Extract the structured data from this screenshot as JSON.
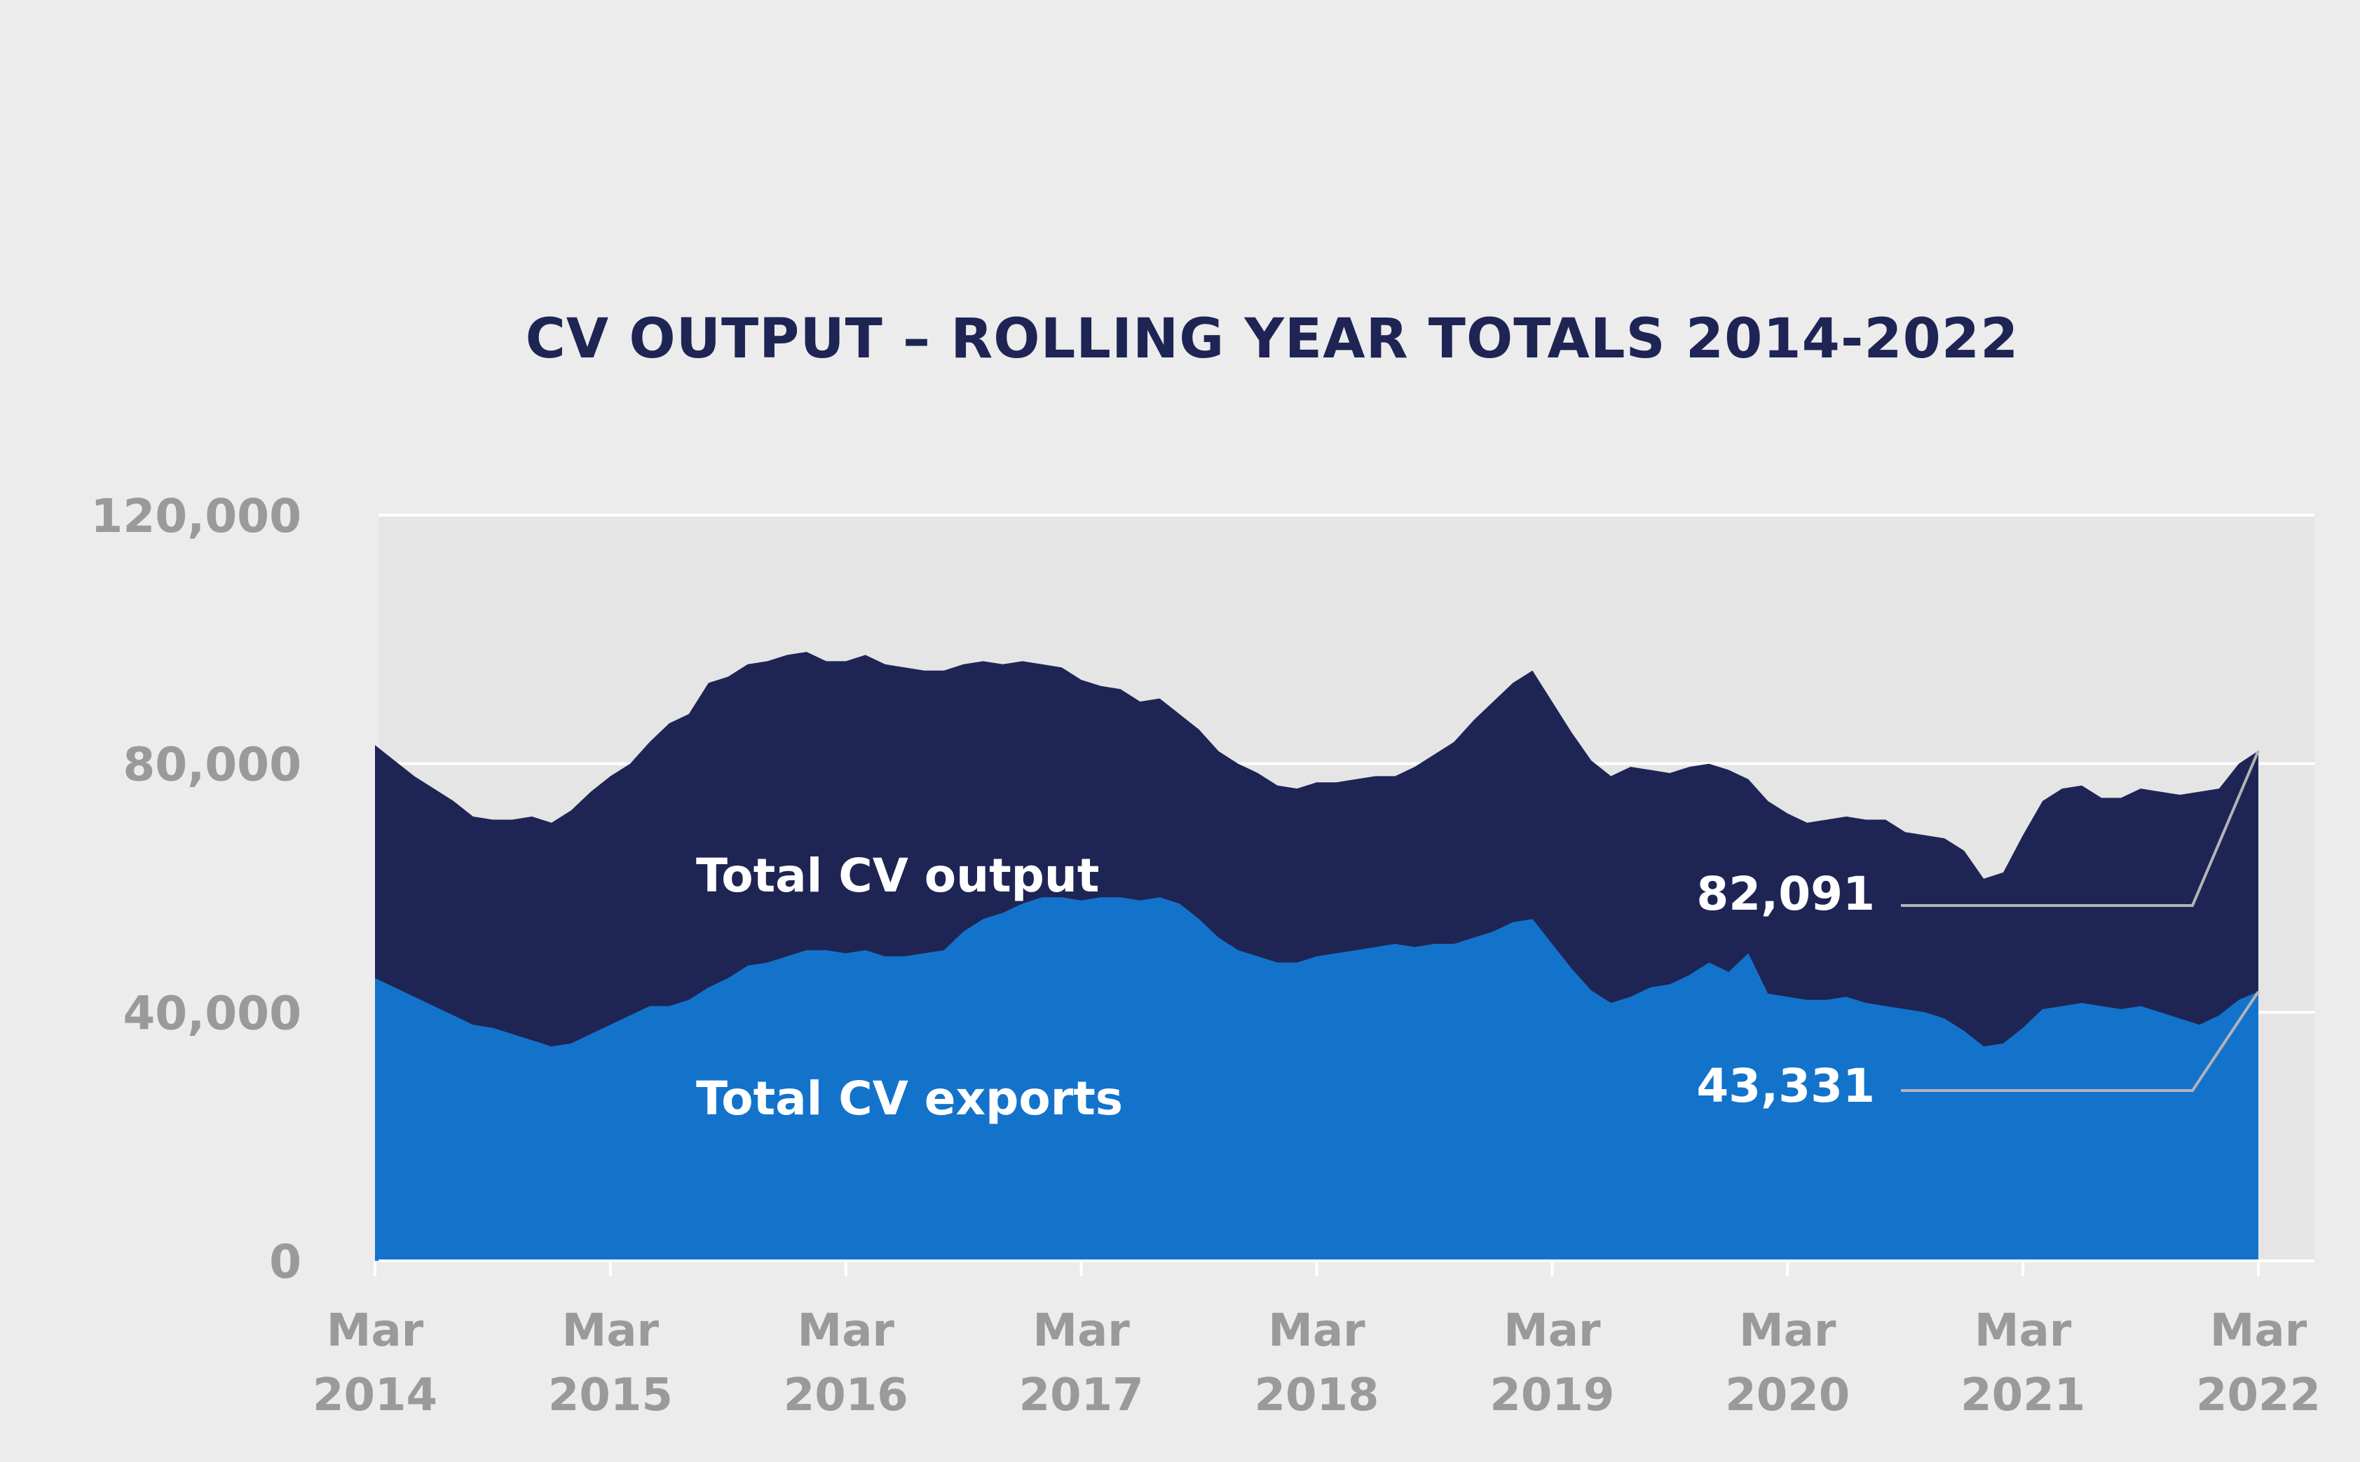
{
  "chart_data": {
    "type": "area",
    "title": "CV OUTPUT – ROLLING YEAR TOTALS 2014-2022",
    "xlabel": "",
    "ylabel": "",
    "ylim": [
      0,
      120000
    ],
    "yticks": [
      {
        "value": 0,
        "label": "0"
      },
      {
        "value": 40000,
        "label": "40,000"
      },
      {
        "value": 80000,
        "label": "80,000"
      },
      {
        "value": 120000,
        "label": "120,000"
      }
    ],
    "xticks": [
      {
        "index": 0,
        "month": "Mar",
        "year": "2014"
      },
      {
        "index": 12,
        "month": "Mar",
        "year": "2015"
      },
      {
        "index": 24,
        "month": "Mar",
        "year": "2016"
      },
      {
        "index": 36,
        "month": "Mar",
        "year": "2017"
      },
      {
        "index": 48,
        "month": "Mar",
        "year": "2018"
      },
      {
        "index": 60,
        "month": "Mar",
        "year": "2019"
      },
      {
        "index": 72,
        "month": "Mar",
        "year": "2020"
      },
      {
        "index": 84,
        "month": "Mar",
        "year": "2021"
      },
      {
        "index": 96,
        "month": "Mar",
        "year": "2022"
      }
    ],
    "grid": true,
    "series": [
      {
        "name": "Total CV output",
        "color": "#1e2554",
        "values": [
          83000,
          80500,
          78000,
          76000,
          74000,
          71500,
          71000,
          71000,
          71500,
          70500,
          72500,
          75500,
          78000,
          80000,
          83500,
          86500,
          88000,
          93000,
          94000,
          96000,
          96500,
          97500,
          98000,
          96500,
          96500,
          97500,
          96000,
          95500,
          95000,
          95000,
          96000,
          96500,
          96000,
          96500,
          96000,
          95500,
          93500,
          92500,
          92000,
          90000,
          90500,
          88000,
          85500,
          82000,
          80000,
          78500,
          76500,
          76000,
          77000,
          77000,
          77500,
          78000,
          78000,
          79500,
          81500,
          83500,
          87000,
          90000,
          93000,
          95000,
          90000,
          85000,
          80500,
          78000,
          79500,
          79000,
          78500,
          79500,
          80000,
          79000,
          77500,
          74000,
          72000,
          70500,
          71000,
          71500,
          71000,
          71000,
          69000,
          68500,
          68000,
          66000,
          61500,
          62500,
          68500,
          74000,
          76000,
          76500,
          74500,
          74500,
          76000,
          75500,
          75000,
          75500,
          76000,
          80000,
          82091
        ]
      },
      {
        "name": "Total CV exports",
        "color": "#1373cb",
        "values": [
          45500,
          44000,
          42500,
          41000,
          39500,
          38000,
          37500,
          36500,
          35500,
          34500,
          35000,
          36500,
          38000,
          39500,
          41000,
          41000,
          42000,
          44000,
          45500,
          47500,
          48000,
          49000,
          50000,
          50000,
          49500,
          50000,
          49000,
          49000,
          49500,
          50000,
          53000,
          55000,
          56000,
          57500,
          58500,
          58500,
          58000,
          58500,
          58500,
          58000,
          58500,
          57500,
          55000,
          52000,
          50000,
          49000,
          48000,
          48000,
          49000,
          49500,
          50000,
          50500,
          51000,
          50500,
          51000,
          51000,
          52000,
          53000,
          54500,
          55000,
          51000,
          47000,
          43500,
          41500,
          42500,
          44000,
          44500,
          46000,
          48000,
          46500,
          49500,
          43000,
          42500,
          42000,
          42000,
          42500,
          41500,
          41000,
          40500,
          40000,
          39000,
          37000,
          34500,
          35000,
          37500,
          40500,
          41000,
          41500,
          41000,
          40500,
          41000,
          40000,
          39000,
          38000,
          39500,
          42000,
          43331
        ]
      }
    ],
    "annotations": [
      {
        "label": "82,091",
        "series": "Total CV output"
      },
      {
        "label": "43,331",
        "series": "Total CV exports"
      }
    ]
  }
}
